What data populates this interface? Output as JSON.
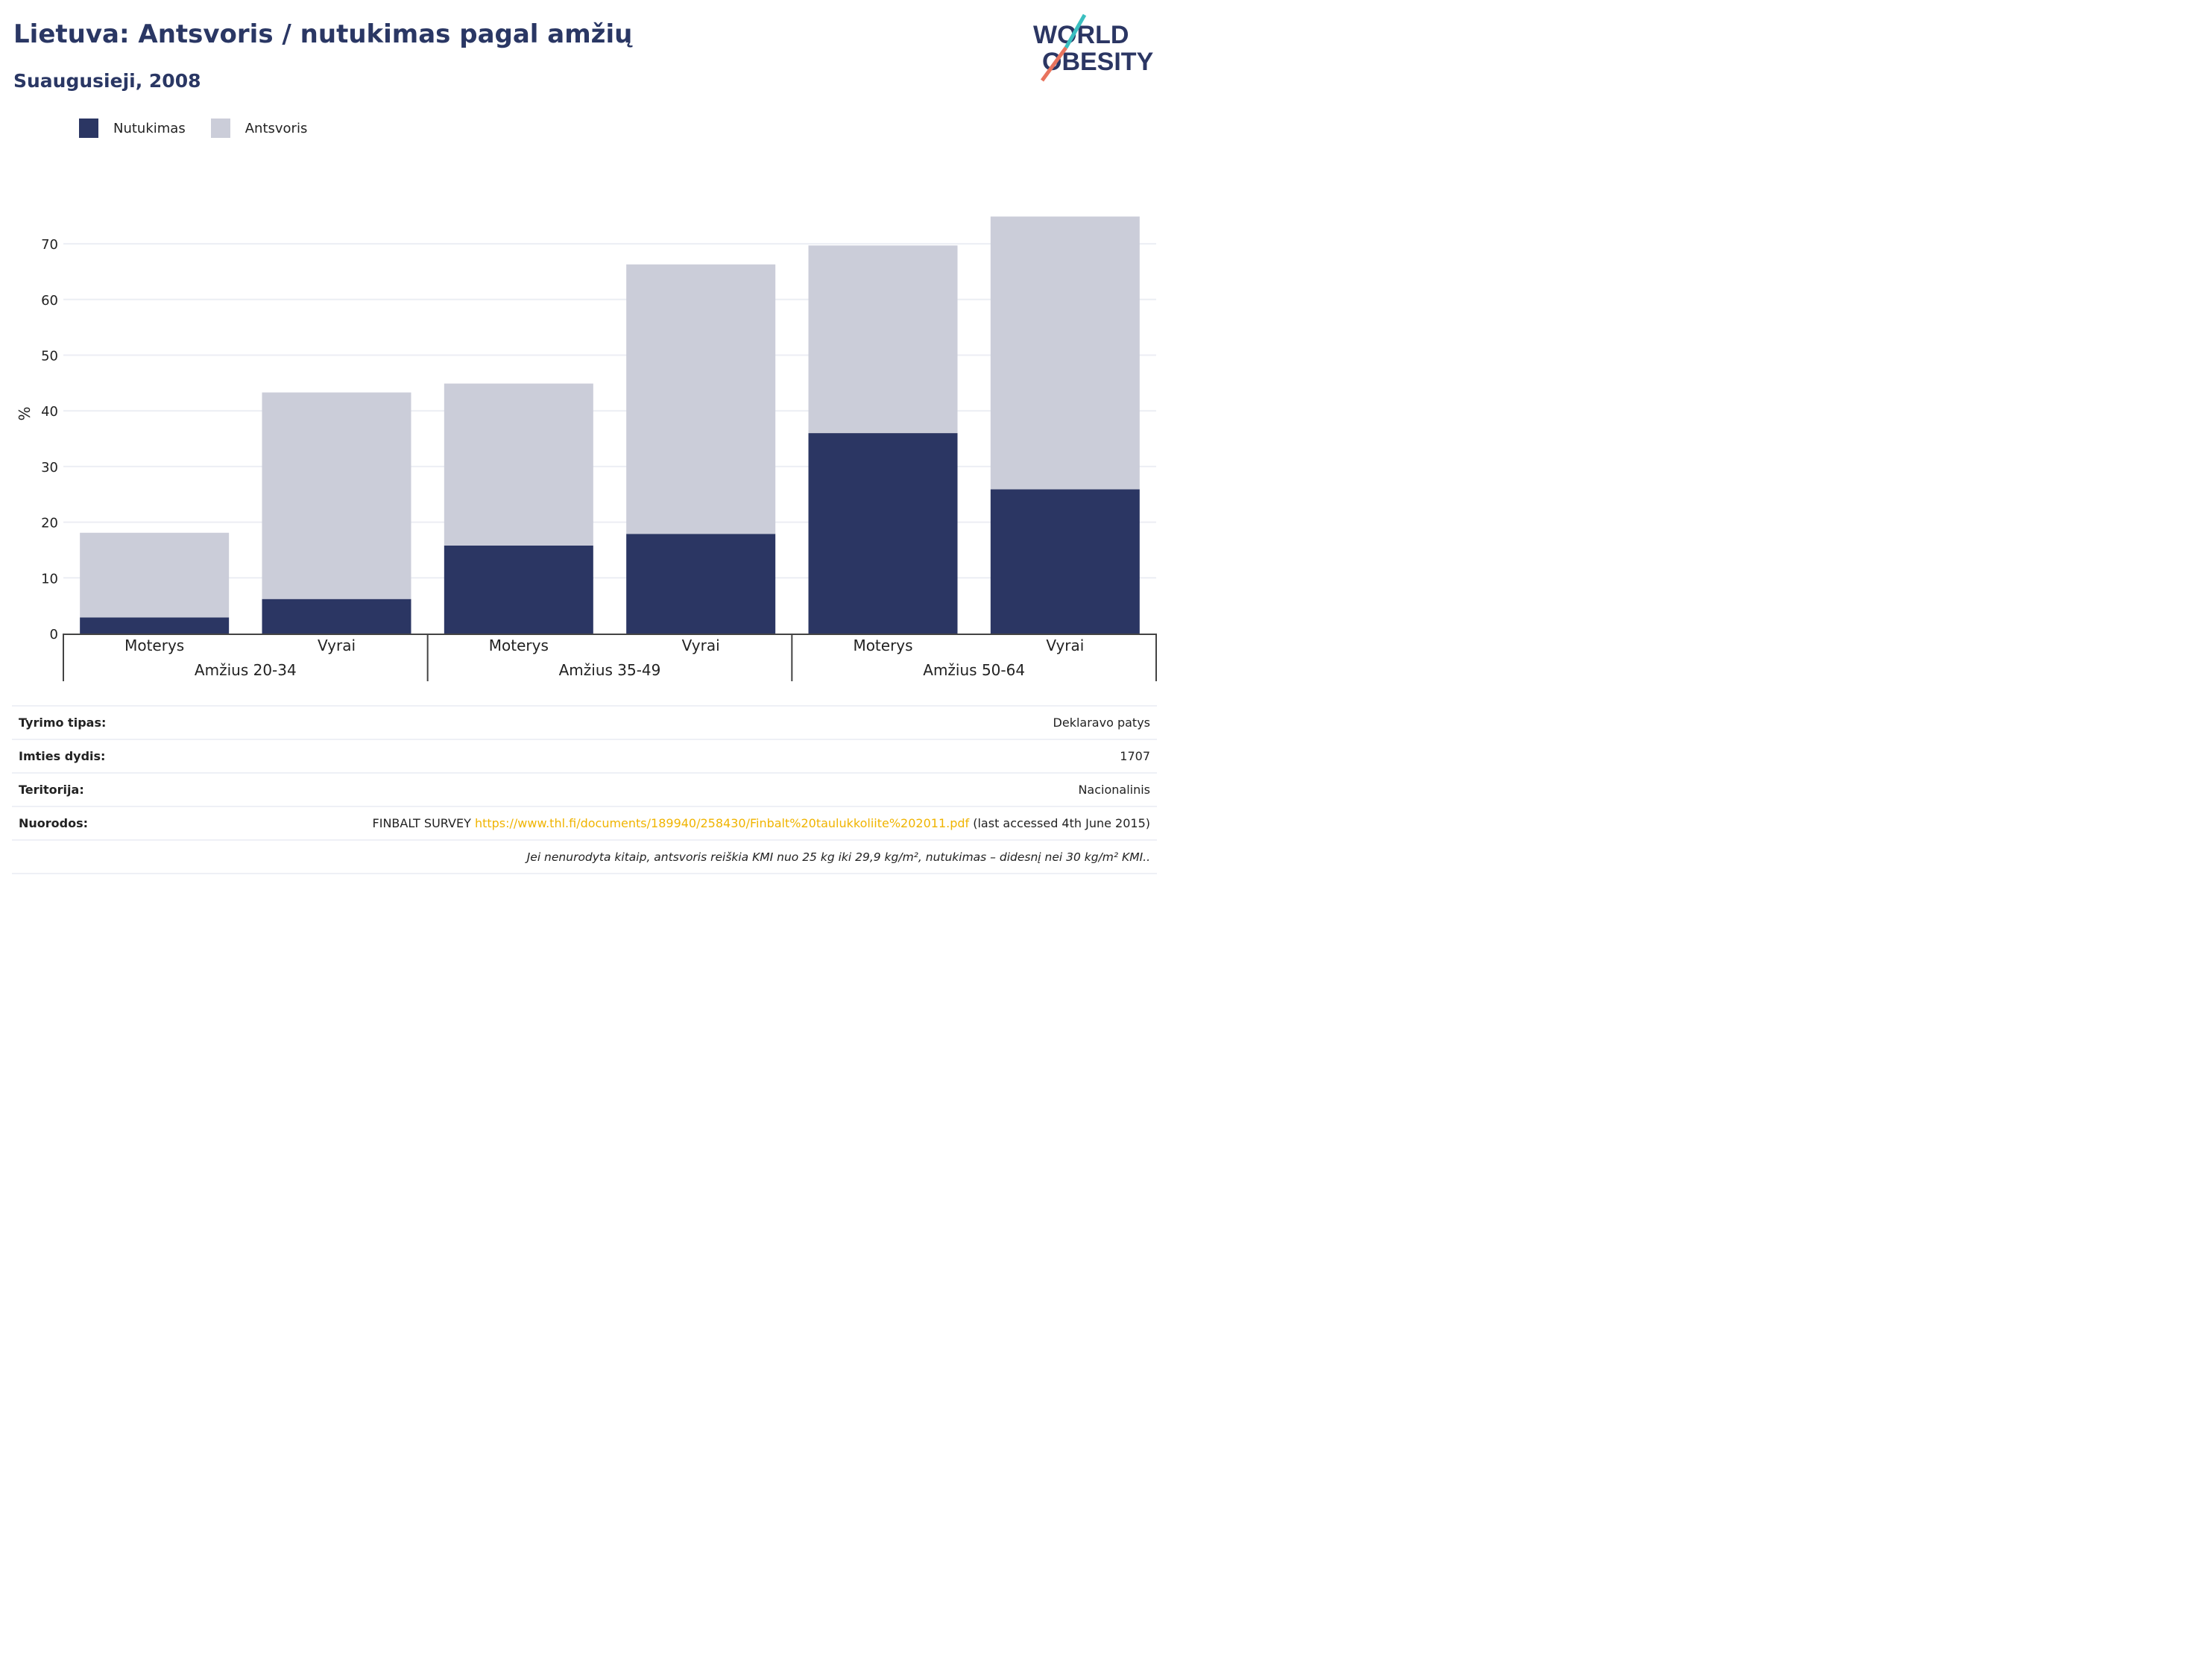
{
  "header": {
    "title": "Lietuva: Antsvoris / nutukimas pagal amžių",
    "subtitle": "Suaugusieji, 2008"
  },
  "logo": {
    "line1": "WORLD",
    "line2": "OBESITY"
  },
  "colors": {
    "obesity": "#2b3663",
    "overweight": "#cbcdd9",
    "title": "#2a3764",
    "link": "#f0b400"
  },
  "chart_data": {
    "type": "bar",
    "stacked": true,
    "ylabel": "%",
    "ylim": [
      0,
      75
    ],
    "yticks": [
      0,
      10,
      20,
      30,
      40,
      50,
      60,
      70
    ],
    "grid": true,
    "legend_position": "top-left",
    "groups": [
      "Amžius 20-34",
      "Amžius 35-49",
      "Amžius 50-64"
    ],
    "categories": [
      "Moterys",
      "Vyrai",
      "Moterys",
      "Vyrai",
      "Moterys",
      "Vyrai"
    ],
    "series": [
      {
        "name": "Nutukimas",
        "values": [
          2.9,
          6.2,
          15.8,
          17.9,
          36.0,
          25.9
        ]
      },
      {
        "name": "Antsvoris",
        "values": [
          15.2,
          37.1,
          29.1,
          48.4,
          33.7,
          49.0
        ]
      }
    ]
  },
  "info": {
    "rows": [
      {
        "label": "Tyrimo tipas:",
        "value": "Deklaravo patys"
      },
      {
        "label": "Imties dydis:",
        "value": "1707"
      },
      {
        "label": "Teritorija:",
        "value": "Nacionalinis"
      }
    ],
    "refs": {
      "label": "Nuorodos:",
      "prefix": "FINBALT SURVEY ",
      "link": "https://www.thl.fi/documents/189940/258430/Finbalt%20taulukkoliite%202011.pdf",
      "suffix": " (last accessed 4th June 2015)"
    },
    "note": "Jei nenurodyta kitaip, antsvoris reiškia KMI nuo 25 kg iki 29,9 kg/m², nutukimas – didesnį nei 30 kg/m² KMI.."
  }
}
